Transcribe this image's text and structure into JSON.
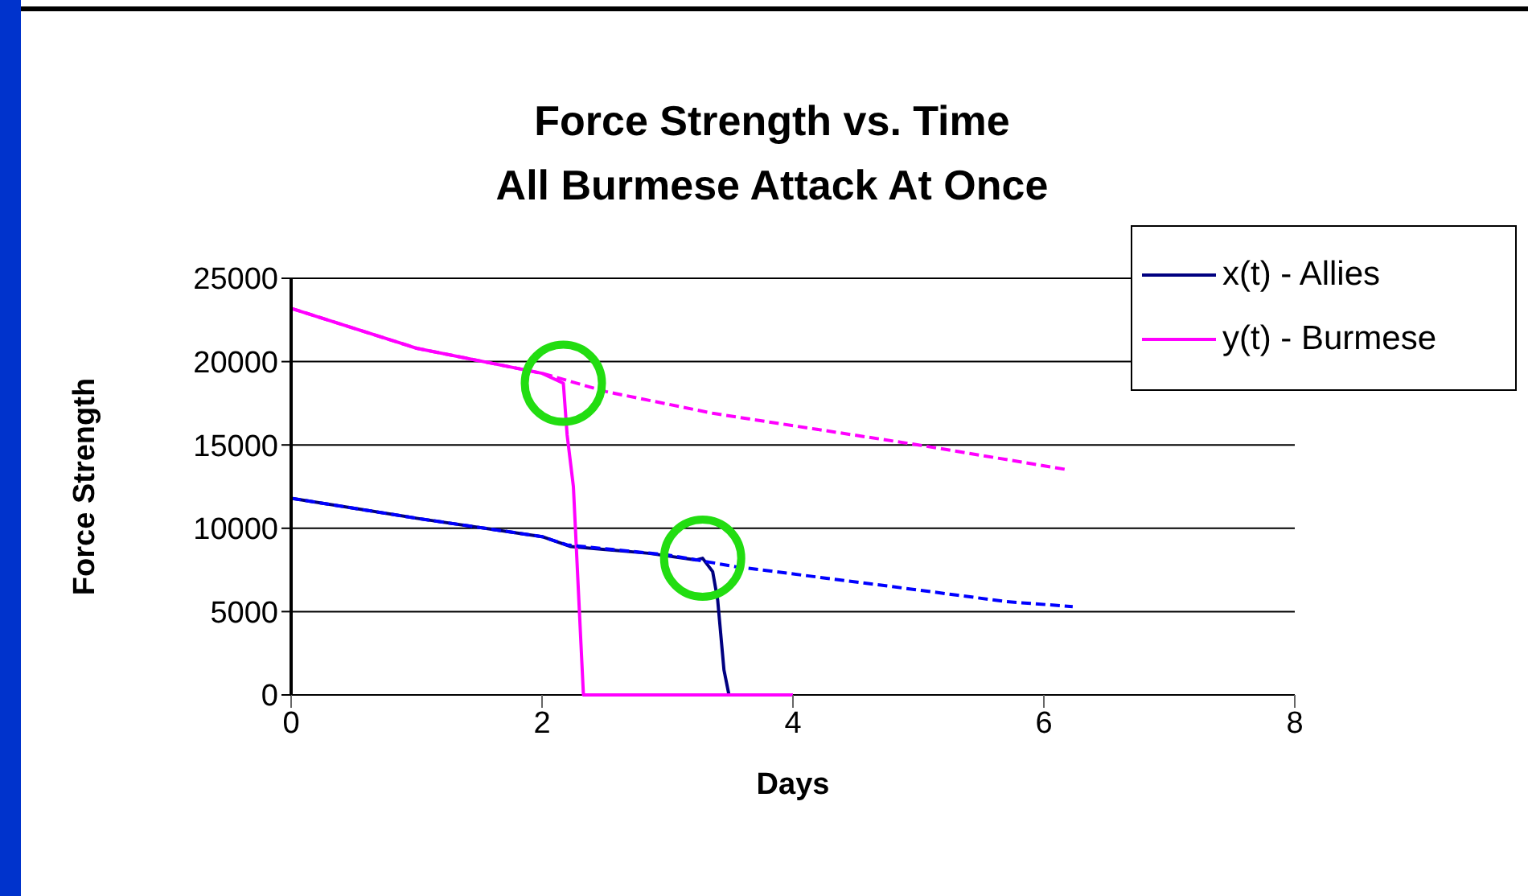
{
  "chart_data": {
    "type": "line",
    "title": "Force Strength vs. Time\nAll Burmese Attack At Once",
    "xlabel": "Days",
    "ylabel": "Force Strength",
    "xlim": [
      0,
      8
    ],
    "xticks": [
      0,
      2,
      4,
      6,
      8
    ],
    "ylim": [
      0,
      25000
    ],
    "yticks": [
      0,
      5000,
      10000,
      15000,
      20000,
      25000
    ],
    "grid": "y",
    "legend": "top right",
    "marker": "none",
    "series": [
      {
        "name": "x(t) - Allies",
        "color": "#000080",
        "line_style": "solid",
        "x": [
          0,
          1,
          2,
          2.23,
          2.85,
          3.23,
          3.28,
          3.36,
          3.4,
          3.45,
          3.49
        ],
        "values": [
          11800,
          10600,
          9500,
          8900,
          8500,
          8100,
          8200,
          7400,
          5700,
          1500,
          0
        ]
      },
      {
        "name": "y(t) - Burmese",
        "color": "#ff00ff",
        "line_style": "solid",
        "x": [
          0,
          1,
          2,
          2.17,
          2.2,
          2.25,
          2.31,
          2.33,
          4
        ],
        "values": [
          23200,
          20800,
          19300,
          18700,
          15600,
          12500,
          3100,
          0,
          0
        ]
      },
      {
        "color": "#0000ff",
        "line_style": "dashed",
        "x": [
          0,
          1,
          2,
          2.2,
          3,
          3.54,
          4.69,
          5.7,
          6.23
        ],
        "values": [
          11800,
          10600,
          9500,
          9000,
          8400,
          7700,
          6600,
          5600,
          5300
        ]
      },
      {
        "color": "#ff00ff",
        "line_style": "dashed",
        "x": [
          0,
          1,
          2,
          2.51,
          3.36,
          5,
          6.2
        ],
        "values": [
          23200,
          20800,
          19300,
          18200,
          16900,
          15000,
          13500
        ]
      }
    ]
  }
}
